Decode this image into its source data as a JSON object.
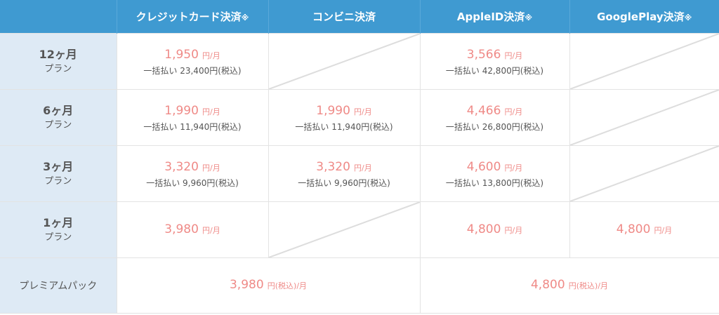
{
  "header": {
    "corner": "",
    "columns": [
      {
        "label": "クレジットカード決済",
        "mark": "※"
      },
      {
        "label": "コンビニ決済",
        "mark": ""
      },
      {
        "label": "AppleID決済",
        "mark": "※"
      },
      {
        "label": "GooglePlay決済",
        "mark": "※"
      }
    ]
  },
  "plan_suffix": "プラン",
  "rows": [
    {
      "duration": "12ヶ月",
      "cells": [
        {
          "price": "1,950",
          "unit": "円/月",
          "lump": "一括払い 23,400円(税込)"
        },
        null,
        {
          "price": "3,566",
          "unit": "円/月",
          "lump": "一括払い 42,800円(税込)"
        },
        null
      ]
    },
    {
      "duration": "6ヶ月",
      "cells": [
        {
          "price": "1,990",
          "unit": "円/月",
          "lump": "一括払い 11,940円(税込)"
        },
        {
          "price": "1,990",
          "unit": "円/月",
          "lump": "一括払い 11,940円(税込)"
        },
        {
          "price": "4,466",
          "unit": "円/月",
          "lump": "一括払い 26,800円(税込)"
        },
        null
      ]
    },
    {
      "duration": "3ヶ月",
      "cells": [
        {
          "price": "3,320",
          "unit": "円/月",
          "lump": "一括払い 9,960円(税込)"
        },
        {
          "price": "3,320",
          "unit": "円/月",
          "lump": "一括払い 9,960円(税込)"
        },
        {
          "price": "4,600",
          "unit": "円/月",
          "lump": "一括払い 13,800円(税込)"
        },
        null
      ]
    },
    {
      "duration": "1ヶ月",
      "cells": [
        {
          "price": "3,980",
          "unit": "円/月",
          "lump": ""
        },
        null,
        {
          "price": "4,800",
          "unit": "円/月",
          "lump": ""
        },
        {
          "price": "4,800",
          "unit": "円/月",
          "lump": ""
        }
      ]
    }
  ],
  "premium": {
    "label": "プレミアムパック",
    "left": {
      "price": "3,980",
      "unit": "円(税込)/月"
    },
    "right": {
      "price": "4,800",
      "unit": "円(税込)/月"
    }
  },
  "colors": {
    "header_bg": "#3f9ad1",
    "row_header_bg": "#deeaf5",
    "price": "#ef8a87",
    "text": "#555555"
  }
}
